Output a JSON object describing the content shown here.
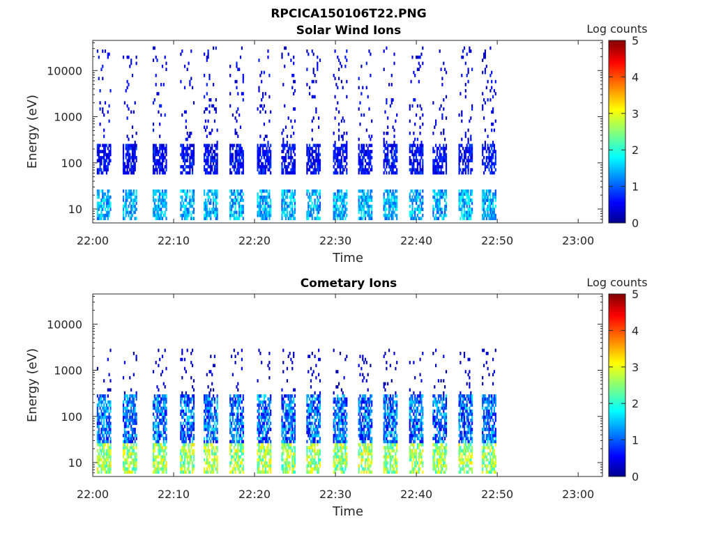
{
  "figure_title": "RPCICA150106T22.PNG",
  "colorbar": {
    "label": "Log counts",
    "ticks": [
      "0",
      "1",
      "2",
      "3",
      "4",
      "5"
    ],
    "range": [
      0,
      5
    ],
    "colormap": "jet"
  },
  "chart_data": [
    {
      "type": "heatmap",
      "title": "Solar Wind Ions",
      "xlabel": "Time",
      "ylabel": "Energy (eV)",
      "x_ticks": [
        "22:00",
        "22:10",
        "22:20",
        "22:30",
        "22:40",
        "22:50",
        "23:00"
      ],
      "x_range": [
        "22:00",
        "23:03"
      ],
      "y_ticks": [
        "10",
        "100",
        "1000",
        "10000"
      ],
      "y_scale": "log",
      "y_range": [
        5,
        45000
      ],
      "data_end": "22:50",
      "scan_starts_min": [
        0.5,
        3.7,
        7.4,
        10.8,
        13.7,
        16.9,
        20.3,
        23.3,
        26.4,
        29.7,
        32.8,
        35.9,
        39.1,
        42.0,
        45.2,
        48.1
      ],
      "description_bands": [
        {
          "e_min": 6,
          "e_max": 28,
          "log_counts": [
            1.0,
            2.0
          ]
        },
        {
          "e_min": 60,
          "e_max": 250,
          "log_counts": [
            0.3,
            1.0
          ]
        },
        {
          "e_min": 250,
          "e_max": 35000,
          "log_counts": [
            0.2,
            0.8
          ],
          "sparse": true
        }
      ]
    },
    {
      "type": "heatmap",
      "title": "Cometary Ions",
      "xlabel": "Time",
      "ylabel": "Energy (eV)",
      "x_ticks": [
        "22:00",
        "22:10",
        "22:20",
        "22:30",
        "22:40",
        "22:50",
        "23:00"
      ],
      "x_range": [
        "22:00",
        "23:03"
      ],
      "y_ticks": [
        "10",
        "100",
        "1000",
        "10000"
      ],
      "y_scale": "log",
      "y_range": [
        5,
        45000
      ],
      "data_end": "22:50",
      "scan_starts_min": [
        0.5,
        3.7,
        7.4,
        10.8,
        13.7,
        16.9,
        20.3,
        23.3,
        26.4,
        29.7,
        32.8,
        35.9,
        39.1,
        42.0,
        45.2,
        48.1
      ],
      "description_bands": [
        {
          "e_min": 6,
          "e_max": 28,
          "log_counts": [
            2.0,
            3.3
          ]
        },
        {
          "e_min": 28,
          "e_max": 300,
          "log_counts": [
            0.5,
            1.8
          ]
        },
        {
          "e_min": 300,
          "e_max": 3000,
          "log_counts": [
            0.1,
            0.6
          ],
          "sparse": true
        }
      ]
    }
  ]
}
